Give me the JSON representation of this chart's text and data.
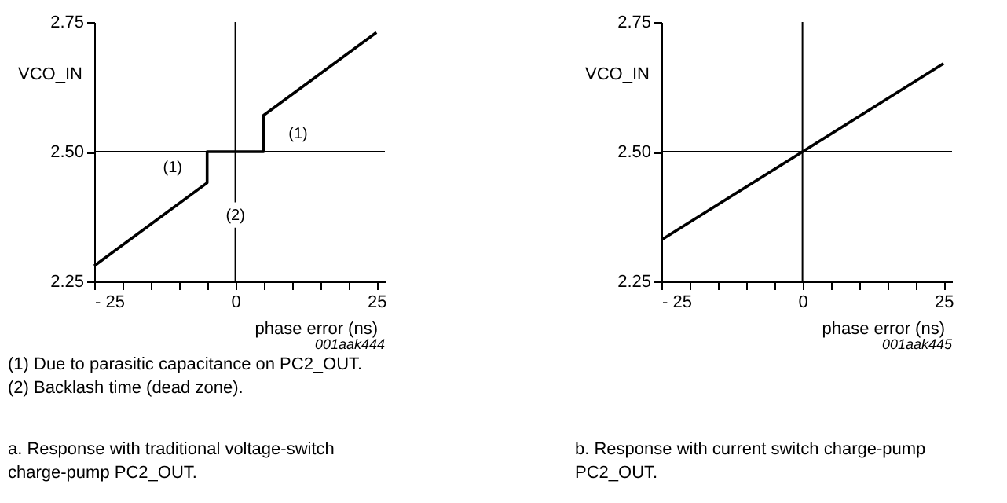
{
  "chart_data": [
    {
      "type": "line",
      "xlabel": "phase error (ns)",
      "ylabel": "VCO_IN",
      "x": [
        -25,
        -5,
        -5,
        5,
        5,
        25
      ],
      "series": [
        {
          "color": "#000000",
          "values": [
            2.28,
            2.44,
            2.5,
            2.5,
            2.57,
            2.73
          ]
        }
      ],
      "xlim": [
        -25,
        26.5
      ],
      "ylim": [
        2.25,
        2.75
      ],
      "xticks": [
        {
          "value": -25,
          "label": "- 25"
        },
        {
          "value": -20,
          "label": null
        },
        {
          "value": -15,
          "label": null
        },
        {
          "value": -10,
          "label": null
        },
        {
          "value": -5,
          "label": null
        },
        0,
        {
          "value": 5,
          "label": null
        },
        {
          "value": 10,
          "label": null
        },
        {
          "value": 15,
          "label": null
        },
        {
          "value": 20,
          "label": null
        },
        25
      ],
      "yticks": [
        {
          "value": 2.25,
          "label": "2.25"
        },
        {
          "value": 2.5,
          "label": "2.50"
        },
        {
          "value": 2.75,
          "label": "2.75"
        }
      ],
      "ref_lines": [
        {
          "axis": "x",
          "value": 0,
          "color": "#000000"
        },
        {
          "axis": "y",
          "value": 2.5,
          "color": "#000000"
        }
      ],
      "annotations": [
        {
          "text": "(1)",
          "x": -5,
          "y": 2.47
        },
        {
          "text": "(1)",
          "x": 5,
          "y": 2.535
        },
        {
          "text": "(2)",
          "x": 0,
          "y": 2.378
        },
        "001aak444",
        "(1) Due to parasitic capacitance on PC2_OUT.",
        "(2) Backlash time (dead zone).",
        "a. Response with traditional voltage-switch charge-pump PC2_OUT."
      ],
      "grid": false,
      "line_style": "solid",
      "marker": "none"
    },
    {
      "type": "line",
      "xlabel": "phase error (ns)",
      "ylabel": "VCO_IN",
      "x": [
        -25,
        25
      ],
      "series": [
        {
          "color": "#000000",
          "values": [
            2.33,
            2.67
          ]
        }
      ],
      "xlim": [
        -25,
        26.5
      ],
      "ylim": [
        2.25,
        2.75
      ],
      "xticks": [
        {
          "value": -25,
          "label": "- 25"
        },
        {
          "value": -20,
          "label": null
        },
        {
          "value": -15,
          "label": null
        },
        {
          "value": -10,
          "label": null
        },
        {
          "value": -5,
          "label": null
        },
        0,
        {
          "value": 5,
          "label": null
        },
        {
          "value": 10,
          "label": null
        },
        {
          "value": 15,
          "label": null
        },
        {
          "value": 20,
          "label": null
        },
        25
      ],
      "yticks": [
        {
          "value": 2.25,
          "label": "2.25"
        },
        {
          "value": 2.5,
          "label": "2.50"
        },
        {
          "value": 2.75,
          "label": "2.75"
        }
      ],
      "ref_lines": [
        {
          "axis": "x",
          "value": 0,
          "color": "#000000"
        },
        {
          "axis": "y",
          "value": 2.5,
          "color": "#000000"
        }
      ],
      "annotations": [
        "001aak445",
        "b. Response with current switch charge-pump PC2_OUT."
      ],
      "grid": false,
      "line_style": "solid",
      "marker": "none"
    }
  ]
}
